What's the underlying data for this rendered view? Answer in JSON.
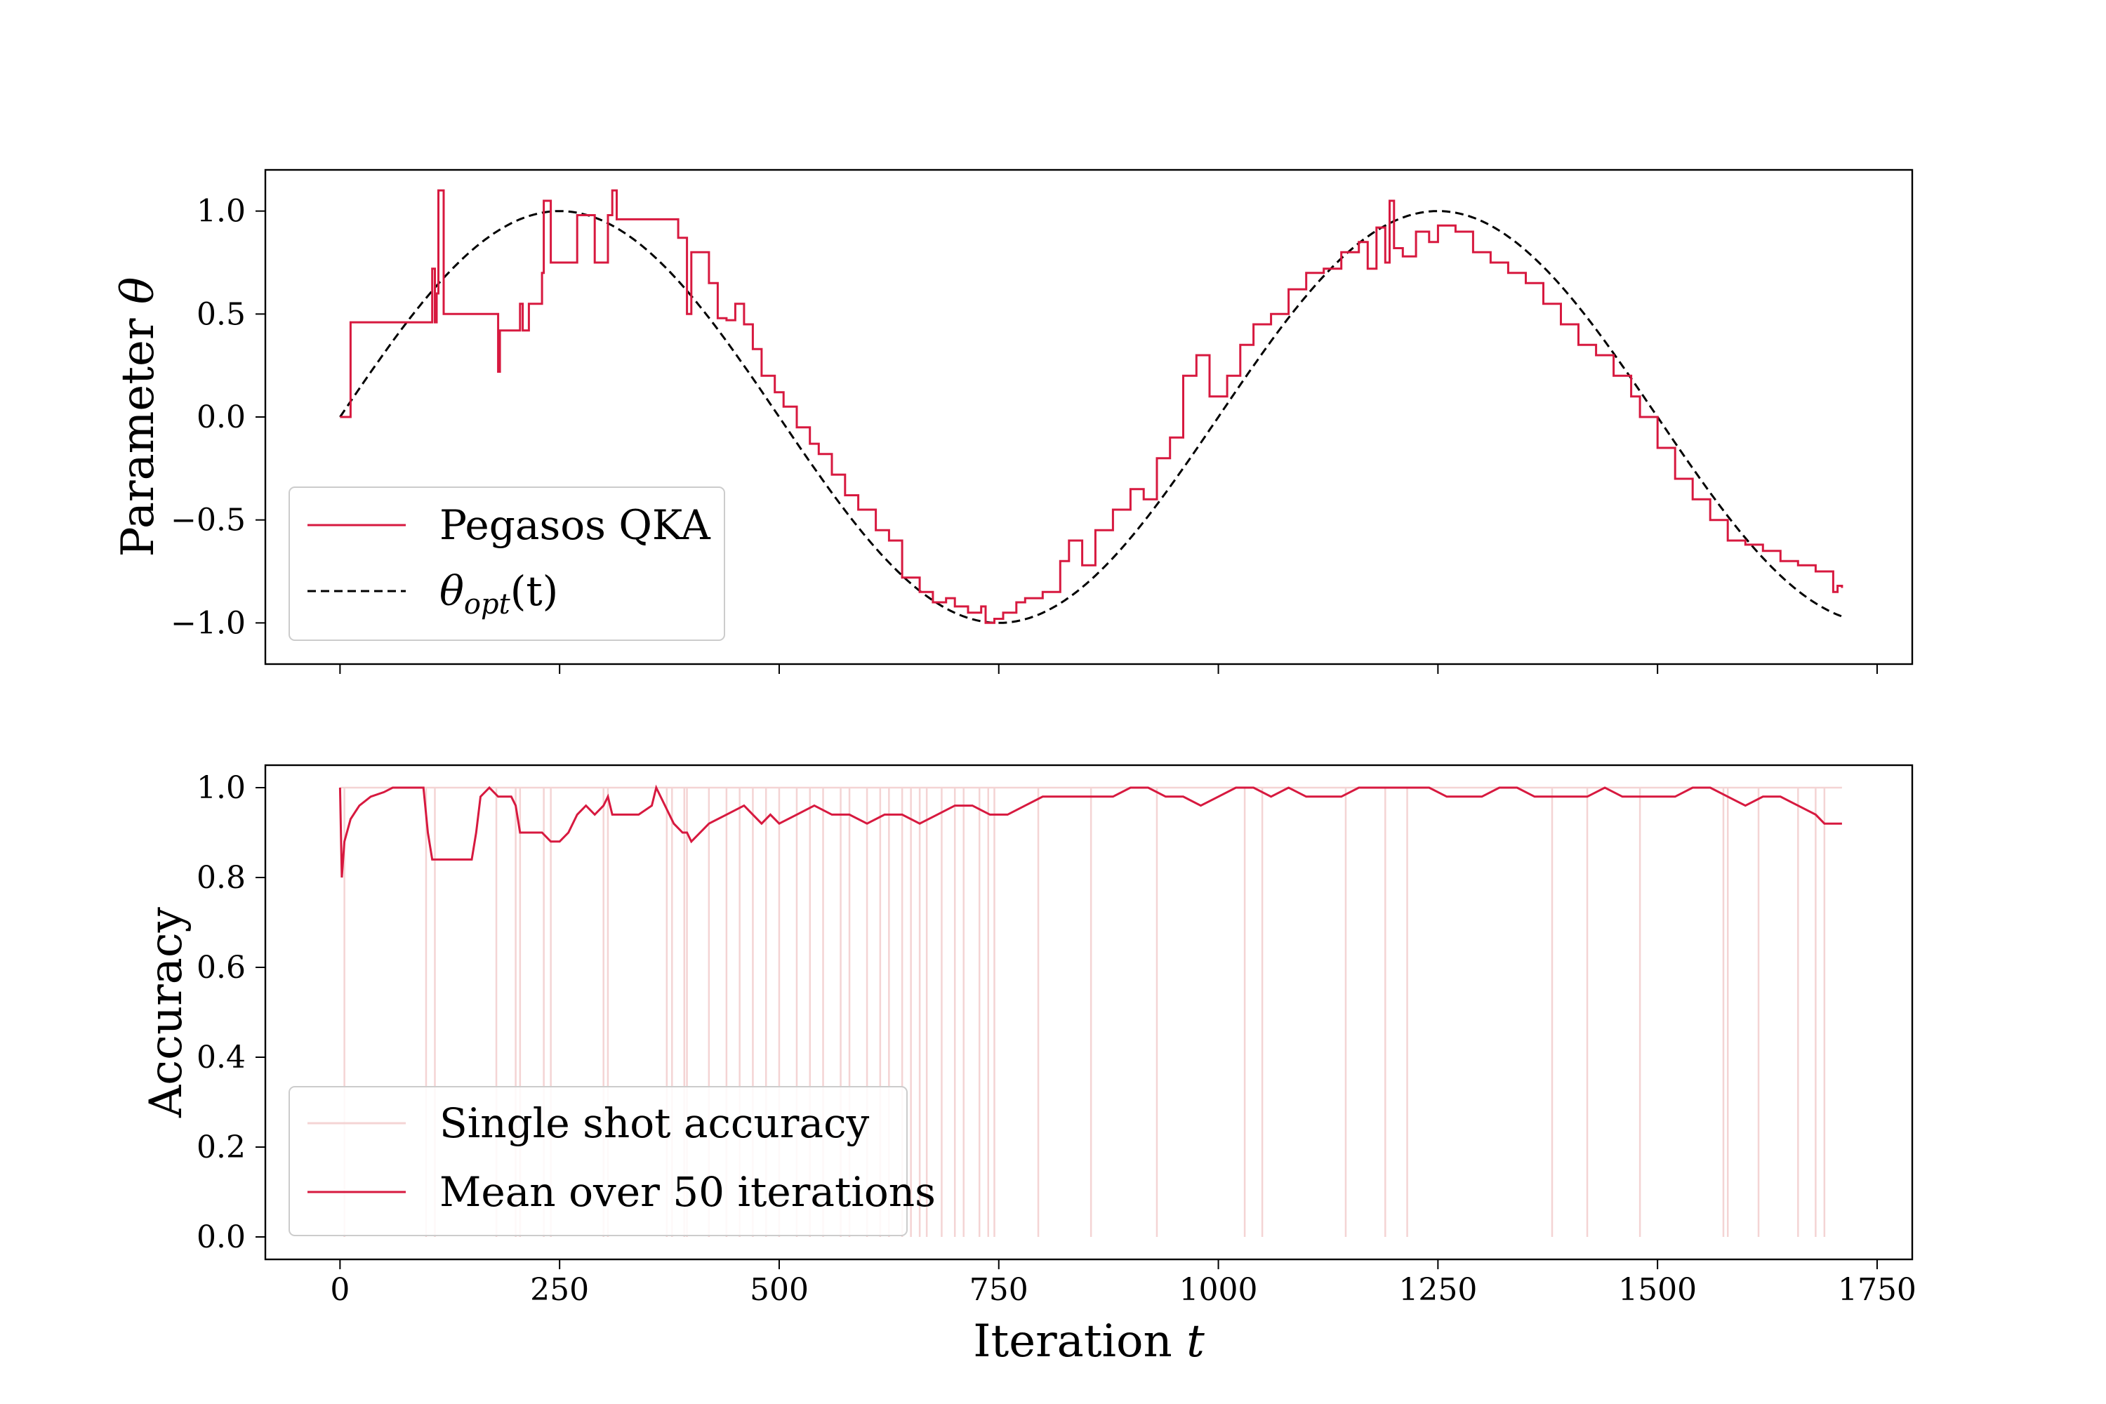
{
  "chart_data": [
    {
      "type": "line",
      "panel": "top",
      "ylabel": "Parameter ",
      "ylabel_symbol": "θ",
      "xlim": [
        -85,
        1790
      ],
      "ylim": [
        -1.2,
        1.2
      ],
      "xticks": [
        0,
        250,
        500,
        750,
        1000,
        1250,
        1500,
        1750
      ],
      "yticks": [
        1.0,
        0.5,
        0.0,
        -0.5,
        -1.0
      ],
      "ytick_labels": [
        "1.0",
        "0.5",
        "0.0",
        "−0.5",
        "−1.0"
      ],
      "xtick_labels_visible": false,
      "grid": false,
      "legend_position": "lower-left",
      "legend": {
        "pegasos_label": "Pegasos QKA",
        "theta_sym": "θ",
        "theta_sub": "opt",
        "theta_arg": "(t)"
      },
      "series": [
        {
          "name": "Pegasos QKA",
          "color": "#d7193f",
          "style": "solid",
          "t": [
            0,
            5,
            12,
            13,
            40,
            70,
            100,
            105,
            108,
            110,
            112,
            118,
            150,
            178,
            180,
            182,
            200,
            205,
            208,
            215,
            230,
            232,
            240,
            242,
            262,
            270,
            290,
            305,
            310,
            315,
            345,
            375,
            385,
            395,
            400,
            420,
            430,
            440,
            450,
            460,
            470,
            480,
            495,
            505,
            520,
            535,
            545,
            560,
            575,
            590,
            610,
            625,
            640,
            660,
            675,
            690,
            700,
            715,
            730,
            735,
            745,
            755,
            770,
            780,
            800,
            820,
            830,
            845,
            860,
            880,
            900,
            915,
            930,
            945,
            960,
            975,
            990,
            1010,
            1025,
            1040,
            1060,
            1080,
            1100,
            1120,
            1140,
            1160,
            1170,
            1180,
            1190,
            1195,
            1200,
            1210,
            1225,
            1240,
            1250,
            1270,
            1290,
            1310,
            1330,
            1350,
            1370,
            1390,
            1410,
            1430,
            1450,
            1470,
            1480,
            1500,
            1520,
            1540,
            1560,
            1580,
            1600,
            1620,
            1640,
            1660,
            1680,
            1700,
            1705,
            1710
          ],
          "values": [
            0.0,
            0.0,
            0.46,
            0.46,
            0.46,
            0.46,
            0.46,
            0.72,
            0.46,
            0.6,
            1.1,
            0.5,
            0.5,
            0.5,
            0.22,
            0.42,
            0.42,
            0.55,
            0.42,
            0.55,
            0.7,
            1.05,
            0.75,
            0.75,
            0.75,
            0.98,
            0.75,
            0.98,
            1.1,
            0.96,
            0.96,
            0.96,
            0.87,
            0.5,
            0.8,
            0.65,
            0.48,
            0.47,
            0.55,
            0.45,
            0.33,
            0.2,
            0.12,
            0.05,
            -0.05,
            -0.13,
            -0.18,
            -0.28,
            -0.38,
            -0.45,
            -0.55,
            -0.6,
            -0.78,
            -0.85,
            -0.9,
            -0.88,
            -0.92,
            -0.95,
            -0.92,
            -1.0,
            -0.98,
            -0.95,
            -0.9,
            -0.88,
            -0.85,
            -0.7,
            -0.6,
            -0.72,
            -0.55,
            -0.45,
            -0.35,
            -0.4,
            -0.2,
            -0.1,
            0.2,
            0.3,
            0.1,
            0.2,
            0.35,
            0.45,
            0.5,
            0.62,
            0.7,
            0.72,
            0.8,
            0.85,
            0.72,
            0.92,
            0.75,
            1.05,
            0.82,
            0.78,
            0.9,
            0.85,
            0.93,
            0.9,
            0.8,
            0.75,
            0.7,
            0.65,
            0.55,
            0.45,
            0.35,
            0.3,
            0.2,
            0.1,
            0.0,
            -0.15,
            -0.3,
            -0.4,
            -0.5,
            -0.6,
            -0.62,
            -0.65,
            -0.7,
            -0.72,
            -0.75,
            -0.85,
            -0.82,
            -0.83
          ]
        },
        {
          "name": "θopt(t)",
          "color": "#000000",
          "style": "dashed",
          "function": "sin",
          "amplitude": 1.0,
          "period": 1000,
          "t_range": [
            0,
            1710
          ]
        }
      ]
    },
    {
      "type": "line",
      "panel": "bottom",
      "xlabel": "Iteration ",
      "xlabel_symbol": "t",
      "ylabel": "Accuracy",
      "xlim": [
        -85,
        1790
      ],
      "ylim": [
        -0.05,
        1.05
      ],
      "xticks": [
        0,
        250,
        500,
        750,
        1000,
        1250,
        1500,
        1750
      ],
      "xtick_labels": [
        "0",
        "250",
        "500",
        "750",
        "1000",
        "1250",
        "1500",
        "1750"
      ],
      "yticks": [
        0.0,
        0.2,
        0.4,
        0.6,
        0.8,
        1.0
      ],
      "ytick_labels": [
        "0.0",
        "0.2",
        "0.4",
        "0.6",
        "0.8",
        "1.0"
      ],
      "grid": false,
      "legend_position": "lower-left",
      "series": [
        {
          "name": "Single shot accuracy",
          "color": "#f4d4d4",
          "style": "solid",
          "baseline": 1.0,
          "drops_to_zero_at": [
            5,
            98,
            108,
            178,
            200,
            205,
            232,
            240,
            300,
            305,
            372,
            378,
            392,
            395,
            420,
            440,
            455,
            470,
            485,
            500,
            520,
            535,
            550,
            570,
            580,
            600,
            615,
            625,
            640,
            650,
            660,
            668,
            685,
            700,
            710,
            728,
            738,
            745,
            795,
            855,
            930,
            1030,
            1050,
            1145,
            1190,
            1215,
            1380,
            1420,
            1480,
            1575,
            1580,
            1615,
            1660,
            1680,
            1690
          ]
        },
        {
          "name": "Mean over 50 iterations",
          "color": "#d7193f",
          "style": "solid",
          "t": [
            0,
            2,
            5,
            12,
            22,
            35,
            50,
            60,
            95,
            100,
            105,
            150,
            155,
            160,
            170,
            180,
            195,
            200,
            205,
            230,
            240,
            250,
            260,
            270,
            280,
            290,
            300,
            305,
            310,
            320,
            340,
            355,
            360,
            370,
            380,
            390,
            395,
            400,
            420,
            440,
            460,
            470,
            480,
            490,
            500,
            520,
            540,
            560,
            580,
            600,
            620,
            640,
            660,
            680,
            700,
            720,
            740,
            760,
            780,
            800,
            820,
            840,
            860,
            880,
            900,
            920,
            940,
            960,
            980,
            1000,
            1020,
            1040,
            1060,
            1080,
            1100,
            1120,
            1140,
            1160,
            1180,
            1200,
            1220,
            1240,
            1260,
            1280,
            1300,
            1320,
            1340,
            1360,
            1380,
            1400,
            1420,
            1440,
            1460,
            1480,
            1500,
            1520,
            1540,
            1560,
            1580,
            1600,
            1620,
            1640,
            1660,
            1680,
            1690,
            1700,
            1710
          ],
          "values": [
            1.0,
            0.8,
            0.88,
            0.93,
            0.96,
            0.98,
            0.99,
            1.0,
            1.0,
            0.9,
            0.84,
            0.84,
            0.9,
            0.98,
            1.0,
            0.98,
            0.98,
            0.96,
            0.9,
            0.9,
            0.88,
            0.88,
            0.9,
            0.94,
            0.96,
            0.94,
            0.96,
            0.98,
            0.94,
            0.94,
            0.94,
            0.96,
            1.0,
            0.96,
            0.92,
            0.9,
            0.9,
            0.88,
            0.92,
            0.94,
            0.96,
            0.94,
            0.92,
            0.94,
            0.92,
            0.94,
            0.96,
            0.94,
            0.94,
            0.92,
            0.94,
            0.94,
            0.92,
            0.94,
            0.96,
            0.96,
            0.94,
            0.94,
            0.96,
            0.98,
            0.98,
            0.98,
            0.98,
            0.98,
            1.0,
            1.0,
            0.98,
            0.98,
            0.96,
            0.98,
            1.0,
            1.0,
            0.98,
            1.0,
            0.98,
            0.98,
            0.98,
            1.0,
            1.0,
            1.0,
            1.0,
            1.0,
            0.98,
            0.98,
            0.98,
            1.0,
            1.0,
            0.98,
            0.98,
            0.98,
            0.98,
            1.0,
            0.98,
            0.98,
            0.98,
            0.98,
            1.0,
            1.0,
            0.98,
            0.96,
            0.98,
            0.98,
            0.96,
            0.94,
            0.92,
            0.92,
            0.92
          ]
        }
      ]
    }
  ]
}
